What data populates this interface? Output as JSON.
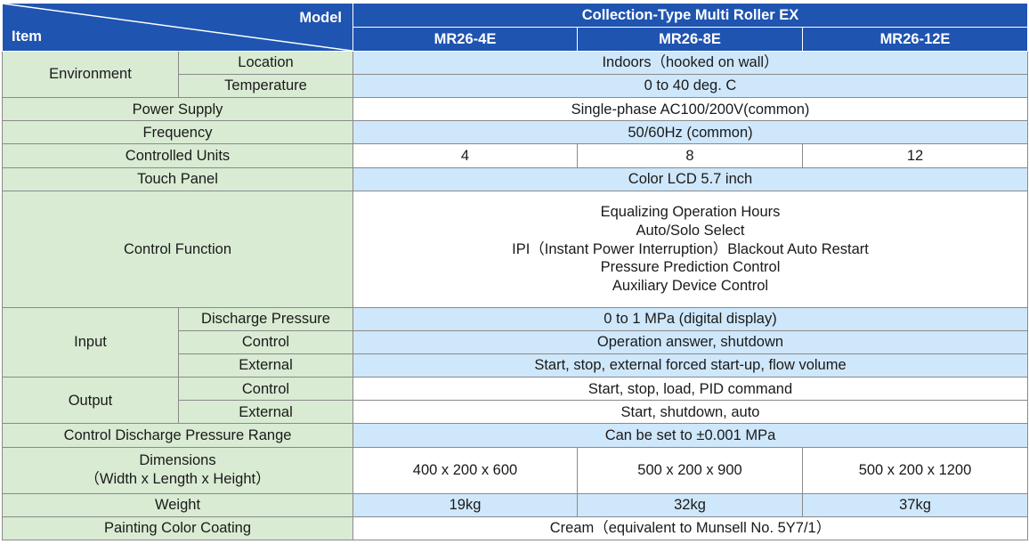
{
  "header": {
    "model_label": "Model",
    "item_label": "Item",
    "product_name": "Collection-Type Multi Roller EX",
    "models": [
      "MR26-4E",
      "MR26-8E",
      "MR26-12E"
    ]
  },
  "rows": {
    "environment": {
      "label": "Environment",
      "location_label": "Location",
      "location_value": "Indoors（hooked on wall）",
      "temperature_label": "Temperature",
      "temperature_value": "0 to 40 deg. C"
    },
    "power_supply": {
      "label": "Power Supply",
      "value": "Single-phase AC100/200V(common)"
    },
    "frequency": {
      "label": "Frequency",
      "value": "50/60Hz (common)"
    },
    "controlled_units": {
      "label": "Controlled Units",
      "values": [
        "4",
        "8",
        "12"
      ]
    },
    "touch_panel": {
      "label": "Touch Panel",
      "value": "Color LCD 5.7 inch"
    },
    "control_function": {
      "label": "Control Function",
      "lines": [
        "Equalizing  Operation Hours",
        "Auto/Solo Select",
        "IPI（Instant Power Interruption）Blackout Auto Restart",
        "Pressure Prediction Control",
        "Auxiliary Device Control"
      ]
    },
    "input": {
      "label": "Input",
      "discharge_label": "Discharge Pressure",
      "discharge_value": "0 to 1 MPa  (digital display)",
      "control_label": "Control",
      "control_value": "Operation answer, shutdown",
      "external_label": "External",
      "external_value": "Start, stop, external forced start-up, flow volume"
    },
    "output": {
      "label": "Output",
      "control_label": "Control",
      "control_value": "Start, stop, load, PID command",
      "external_label": "External",
      "external_value": "Start, shutdown, auto"
    },
    "pressure_range": {
      "label": "Control Discharge Pressure Range",
      "value": "Can be set to ±0.001 MPa"
    },
    "dimensions": {
      "label_line1": "Dimensions",
      "label_line2": "（Width x Length x Height）",
      "values": [
        "400 x 200 x 600",
        "500 x 200 x 900",
        "500 x 200 x 1200"
      ]
    },
    "weight": {
      "label": "Weight",
      "values": [
        "19kg",
        "32kg",
        "37kg"
      ]
    },
    "painting": {
      "label": "Painting Color Coating",
      "value": "Cream（equivalent to Munsell No. 5Y7/1）"
    }
  }
}
